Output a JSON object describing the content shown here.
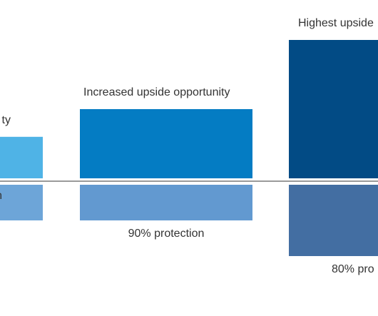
{
  "chart_data": {
    "type": "bar",
    "categories": [
      "",
      "",
      ""
    ],
    "series": [
      {
        "values": [
          3,
          5,
          10
        ],
        "labels": [
          "ty",
          "Increased upside opportunity",
          "Highest upside"
        ],
        "colors": [
          "#4fb3e6",
          "#047cc3",
          "#024b85"
        ]
      },
      {
        "values": [
          -2,
          -2,
          -4
        ],
        "labels": [
          "n",
          "90% protection",
          "80% pro"
        ],
        "colors": [
          "#6da5d8",
          "#6299d0",
          "#436ea2"
        ]
      }
    ],
    "grid": false,
    "legend": "none"
  }
}
